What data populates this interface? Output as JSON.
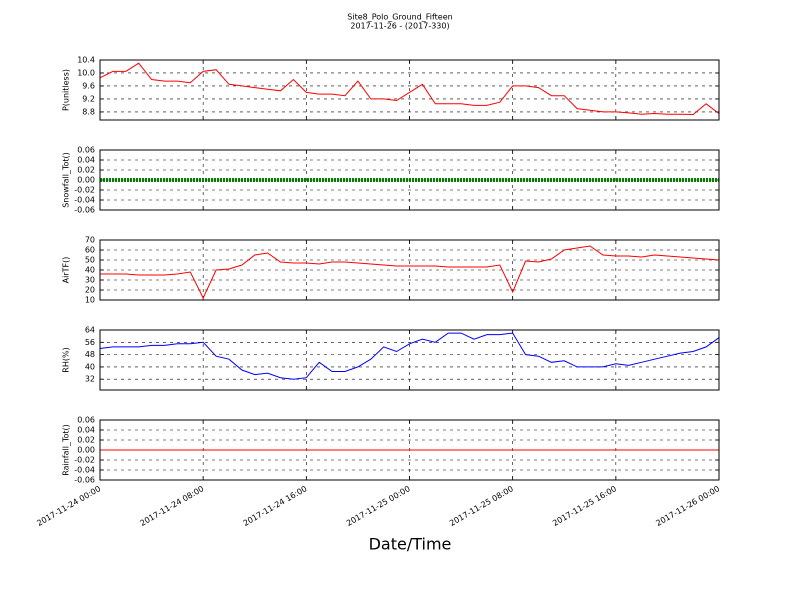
{
  "chart_data": [
    {
      "type": "line",
      "title": "Site8_Polo_Ground_Fifteen",
      "subtitle": "2017-11-26 - (2017-330)",
      "ylabel": "P(unitless)",
      "xlim": [
        "2017-11-24 00:00",
        "2017-11-26 00:00"
      ],
      "xticks": [
        "2017-11-24 00:00",
        "2017-11-24 08:00",
        "2017-11-24 16:00",
        "2017-11-25 00:00",
        "2017-11-25 08:00",
        "2017-11-25 16:00",
        "2017-11-26 00:00"
      ],
      "ylim": [
        8.55,
        10.4
      ],
      "yticks": [
        8.8,
        9.2,
        9.6,
        {
          "value": 10,
          "label": "10.0"
        },
        10.4
      ],
      "grid": true,
      "x": [
        "2017-11-24 00:00",
        "2017-11-24 01:00",
        "2017-11-24 02:00",
        "2017-11-24 03:00",
        "2017-11-24 04:00",
        "2017-11-24 05:00",
        "2017-11-24 06:00",
        "2017-11-24 07:00",
        "2017-11-24 08:00",
        "2017-11-24 09:00",
        "2017-11-24 10:00",
        "2017-11-24 11:00",
        "2017-11-24 12:00",
        "2017-11-24 13:00",
        "2017-11-24 14:00",
        "2017-11-24 15:00",
        "2017-11-24 16:00",
        "2017-11-24 17:00",
        "2017-11-24 18:00",
        "2017-11-24 19:00",
        "2017-11-24 20:00",
        "2017-11-24 21:00",
        "2017-11-24 22:00",
        "2017-11-24 23:00",
        "2017-11-25 00:00",
        "2017-11-25 01:00",
        "2017-11-25 02:00",
        "2017-11-25 03:00",
        "2017-11-25 04:00",
        "2017-11-25 05:00",
        "2017-11-25 06:00",
        "2017-11-25 07:00",
        "2017-11-25 08:00",
        "2017-11-25 09:00",
        "2017-11-25 10:00",
        "2017-11-25 11:00",
        "2017-11-25 12:00",
        "2017-11-25 13:00",
        "2017-11-25 14:00",
        "2017-11-25 15:00",
        "2017-11-25 16:00",
        "2017-11-25 17:00",
        "2017-11-25 18:00",
        "2017-11-25 19:00",
        "2017-11-25 20:00",
        "2017-11-25 21:00",
        "2017-11-25 22:00",
        "2017-11-25 23:00",
        "2017-11-26 00:00"
      ],
      "series": [
        {
          "color": "#ff0000",
          "values": [
            9.85,
            10.05,
            10.05,
            10.3,
            9.8,
            9.75,
            9.75,
            9.7,
            10.05,
            10.1,
            9.65,
            9.6,
            9.55,
            9.5,
            9.45,
            9.8,
            9.4,
            9.35,
            9.35,
            9.3,
            9.75,
            9.2,
            9.2,
            9.15,
            9.4,
            9.65,
            9.05,
            9.05,
            9.05,
            9.0,
            9.0,
            9.1,
            9.6,
            9.6,
            9.55,
            9.3,
            9.3,
            8.9,
            8.85,
            8.8,
            8.8,
            8.77,
            8.73,
            8.75,
            8.73,
            8.73,
            8.72,
            9.05,
            8.75
          ]
        }
      ]
    },
    {
      "type": "line",
      "ylabel": "Snowfall_Tot()",
      "xlim": [
        "2017-11-24 00:00",
        "2017-11-26 00:00"
      ],
      "xticks": [
        "2017-11-24 00:00",
        "2017-11-24 08:00",
        "2017-11-24 16:00",
        "2017-11-25 00:00",
        "2017-11-25 08:00",
        "2017-11-25 16:00",
        "2017-11-26 00:00"
      ],
      "ylim": [
        -0.06,
        0.06
      ],
      "yticks": [
        -0.06,
        -0.04,
        -0.02,
        {
          "value": 0,
          "label": "0.00"
        },
        0.02,
        0.04,
        0.06
      ],
      "grid": true,
      "x": [
        "2017-11-24 00:00",
        "2017-11-26 00:00"
      ],
      "series": [
        {
          "color": "#008000",
          "values": [
            0,
            0
          ]
        }
      ]
    },
    {
      "type": "line",
      "ylabel": "AirTF()",
      "xlim": [
        "2017-11-24 00:00",
        "2017-11-26 00:00"
      ],
      "xticks": [
        "2017-11-24 00:00",
        "2017-11-24 08:00",
        "2017-11-24 16:00",
        "2017-11-25 00:00",
        "2017-11-25 08:00",
        "2017-11-25 16:00",
        "2017-11-26 00:00"
      ],
      "ylim": [
        10,
        70
      ],
      "yticks": [
        10,
        20,
        30,
        40,
        50,
        60,
        70
      ],
      "grid": true,
      "x": [
        "2017-11-24 00:00",
        "2017-11-24 01:00",
        "2017-11-24 02:00",
        "2017-11-24 03:00",
        "2017-11-24 04:00",
        "2017-11-24 05:00",
        "2017-11-24 06:00",
        "2017-11-24 07:00",
        "2017-11-24 08:00",
        "2017-11-24 09:00",
        "2017-11-24 10:00",
        "2017-11-24 11:00",
        "2017-11-24 12:00",
        "2017-11-24 13:00",
        "2017-11-24 14:00",
        "2017-11-24 15:00",
        "2017-11-24 16:00",
        "2017-11-24 17:00",
        "2017-11-24 18:00",
        "2017-11-24 19:00",
        "2017-11-24 20:00",
        "2017-11-24 21:00",
        "2017-11-24 22:00",
        "2017-11-24 23:00",
        "2017-11-25 00:00",
        "2017-11-25 01:00",
        "2017-11-25 02:00",
        "2017-11-25 03:00",
        "2017-11-25 04:00",
        "2017-11-25 05:00",
        "2017-11-25 06:00",
        "2017-11-25 07:00",
        "2017-11-25 08:00",
        "2017-11-25 09:00",
        "2017-11-25 10:00",
        "2017-11-25 11:00",
        "2017-11-25 12:00",
        "2017-11-25 13:00",
        "2017-11-25 14:00",
        "2017-11-25 15:00",
        "2017-11-25 16:00",
        "2017-11-25 17:00",
        "2017-11-25 18:00",
        "2017-11-25 19:00",
        "2017-11-25 20:00",
        "2017-11-25 21:00",
        "2017-11-25 22:00",
        "2017-11-25 23:00",
        "2017-11-26 00:00"
      ],
      "series": [
        {
          "color": "#ff0000",
          "values": [
            36,
            36,
            36,
            35,
            35,
            35,
            36,
            38,
            12,
            40,
            41,
            45,
            55,
            57,
            48,
            47,
            47,
            46,
            48,
            48,
            47,
            46,
            45,
            44,
            44,
            44,
            44,
            43,
            43,
            43,
            43,
            45,
            18,
            49,
            48,
            51,
            60,
            62,
            64,
            55,
            54,
            54,
            53,
            55,
            54,
            53,
            52,
            51,
            50
          ]
        }
      ]
    },
    {
      "type": "line",
      "ylabel": "RH(%)",
      "xlim": [
        "2017-11-24 00:00",
        "2017-11-26 00:00"
      ],
      "xticks": [
        "2017-11-24 00:00",
        "2017-11-24 08:00",
        "2017-11-24 16:00",
        "2017-11-25 00:00",
        "2017-11-25 08:00",
        "2017-11-25 16:00",
        "2017-11-26 00:00"
      ],
      "ylim": [
        25,
        64
      ],
      "yticks": [
        32,
        40,
        48,
        56,
        64
      ],
      "grid": true,
      "x": [
        "2017-11-24 00:00",
        "2017-11-24 01:00",
        "2017-11-24 02:00",
        "2017-11-24 03:00",
        "2017-11-24 04:00",
        "2017-11-24 05:00",
        "2017-11-24 06:00",
        "2017-11-24 07:00",
        "2017-11-24 08:00",
        "2017-11-24 09:00",
        "2017-11-24 10:00",
        "2017-11-24 11:00",
        "2017-11-24 12:00",
        "2017-11-24 13:00",
        "2017-11-24 14:00",
        "2017-11-24 15:00",
        "2017-11-24 16:00",
        "2017-11-24 17:00",
        "2017-11-24 18:00",
        "2017-11-24 19:00",
        "2017-11-24 20:00",
        "2017-11-24 21:00",
        "2017-11-24 22:00",
        "2017-11-24 23:00",
        "2017-11-25 00:00",
        "2017-11-25 01:00",
        "2017-11-25 02:00",
        "2017-11-25 03:00",
        "2017-11-25 04:00",
        "2017-11-25 05:00",
        "2017-11-25 06:00",
        "2017-11-25 07:00",
        "2017-11-25 08:00",
        "2017-11-25 09:00",
        "2017-11-25 10:00",
        "2017-11-25 11:00",
        "2017-11-25 12:00",
        "2017-11-25 13:00",
        "2017-11-25 14:00",
        "2017-11-25 15:00",
        "2017-11-25 16:00",
        "2017-11-25 17:00",
        "2017-11-25 18:00",
        "2017-11-25 19:00",
        "2017-11-25 20:00",
        "2017-11-25 21:00",
        "2017-11-25 22:00",
        "2017-11-25 23:00",
        "2017-11-26 00:00"
      ],
      "series": [
        {
          "color": "#0000ff",
          "values": [
            52,
            53,
            53,
            53,
            54,
            54,
            55,
            55,
            56,
            47,
            45,
            38,
            35,
            36,
            33,
            32,
            33,
            43,
            37,
            37,
            40,
            45,
            53,
            50,
            55,
            58,
            56,
            62,
            62,
            58,
            61,
            61,
            62,
            48,
            47,
            43,
            44,
            40,
            40,
            40,
            42,
            41,
            43,
            45,
            47,
            49,
            50,
            53,
            59
          ]
        }
      ]
    },
    {
      "type": "line",
      "ylabel": "Rainfall_Tot()",
      "xlabel": "Date/Time",
      "xlim": [
        "2017-11-24 00:00",
        "2017-11-26 00:00"
      ],
      "xticks": [
        "2017-11-24 00:00",
        "2017-11-24 08:00",
        "2017-11-24 16:00",
        "2017-11-25 00:00",
        "2017-11-25 08:00",
        "2017-11-25 16:00",
        "2017-11-26 00:00"
      ],
      "ylim": [
        -0.06,
        0.06
      ],
      "yticks": [
        -0.06,
        -0.04,
        -0.02,
        {
          "value": 0,
          "label": "0.00"
        },
        0.02,
        0.04,
        0.06
      ],
      "grid": true,
      "x": [
        "2017-11-24 00:00",
        "2017-11-26 00:00"
      ],
      "series": [
        {
          "color": "#ff0000",
          "values": [
            0,
            0
          ]
        }
      ]
    }
  ]
}
